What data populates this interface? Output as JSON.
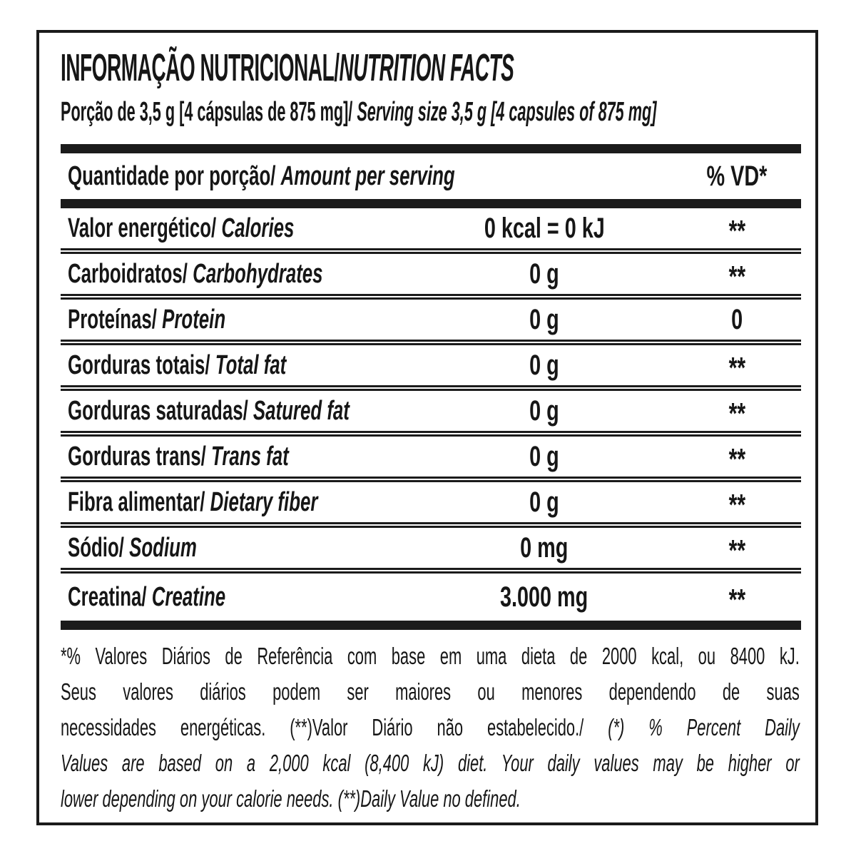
{
  "label": {
    "colors": {
      "ink": "#1b1b1b",
      "background": "#ffffff"
    },
    "title_pt": "INFORMAÇÃO NUTRICIONAL/",
    "title_en": "NUTRITION FACTS",
    "serving_pt": "Porção de 3,5 g [4 cápsulas de 875 mg]/",
    "serving_en": "Serving size 3,5 g [4 capsules of 875 mg]",
    "header": {
      "amount_pt": "Quantidade por porção/",
      "amount_en": "Amount per serving",
      "dv": "% VD*"
    },
    "rows": [
      {
        "label_pt": "Valor energético/",
        "label_en": "Calories",
        "amount": "0 kcal = 0 kJ",
        "dv": "**"
      },
      {
        "label_pt": "Carboidratos/",
        "label_en": "Carbohydrates",
        "amount": "0 g",
        "dv": "**"
      },
      {
        "label_pt": "Proteínas/",
        "label_en": "Protein",
        "amount": "0 g",
        "dv": "0"
      },
      {
        "label_pt": "Gorduras totais/",
        "label_en": "Total fat",
        "amount": "0 g",
        "dv": "**"
      },
      {
        "label_pt": "Gorduras saturadas/",
        "label_en": "Satured fat",
        "amount": "0 g",
        "dv": "**"
      },
      {
        "label_pt": "Gorduras trans/",
        "label_en": "Trans fat",
        "amount": "0 g",
        "dv": "**"
      },
      {
        "label_pt": "Fibra alimentar/",
        "label_en": "Dietary fiber",
        "amount": "0 g",
        "dv": "**"
      },
      {
        "label_pt": "Sódio/",
        "label_en": "Sodium",
        "amount": "0 mg",
        "dv": "**"
      },
      {
        "label_pt": "Creatina/",
        "label_en": "Creatine",
        "amount": "3.000 mg",
        "dv": "**"
      }
    ],
    "footnote_lines": [
      {
        "pt": "*% Valores Diários de Referência com base em uma dieta de 2000 kcal, ou 8400 kJ.",
        "en": ""
      },
      {
        "pt": "Seus valores diários podem ser maiores ou menores dependendo de suas",
        "en": ""
      },
      {
        "pt": "necessidades energéticas. (**)Valor Diário não estabelecido./",
        "en": "(*) % Percent Daily"
      },
      {
        "pt": "",
        "en": "Values are based on a 2,000 kcal (8,400 kJ) diet. Your daily values may be higher or"
      },
      {
        "pt": "",
        "en": "lower depending on your calorie needs. (**)Daily Value no defined."
      }
    ]
  }
}
